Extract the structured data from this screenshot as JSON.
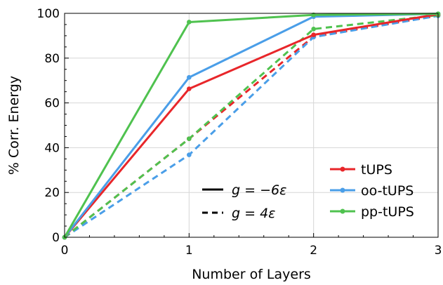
{
  "chart_data": {
    "type": "line",
    "xlabel": "Number of Layers",
    "ylabel": "% Corr. Energy",
    "x": [
      0,
      1,
      2,
      3
    ],
    "xlim": [
      0,
      3
    ],
    "ylim": [
      0,
      100
    ],
    "xticks": [
      "0",
      "1",
      "2",
      "3"
    ],
    "yticks": [
      "0",
      "20",
      "40",
      "60",
      "80",
      "100"
    ],
    "grid": true,
    "series": [
      {
        "name": "tUPS",
        "color": "#e8262a",
        "linestyle": "solid",
        "group": "g = −6ε",
        "values": [
          0,
          66.3,
          90.4,
          99.6
        ]
      },
      {
        "name": "oo-tUPS",
        "color": "#4a9ee8",
        "linestyle": "solid",
        "group": "g = −6ε",
        "values": [
          0,
          71.4,
          98.5,
          99.8
        ]
      },
      {
        "name": "pp-tUPS",
        "color": "#4fc24f",
        "linestyle": "solid",
        "group": "g = −6ε",
        "values": [
          0,
          96.1,
          99.3,
          99.8
        ]
      },
      {
        "name": "tUPS",
        "color": "#e8262a",
        "linestyle": "dashed",
        "group": "g = 4ε",
        "values": [
          0,
          44.0,
          89.6,
          99.0
        ]
      },
      {
        "name": "oo-tUPS",
        "color": "#4a9ee8",
        "linestyle": "dashed",
        "group": "g = 4ε",
        "values": [
          0,
          36.8,
          89.4,
          98.9
        ]
      },
      {
        "name": "pp-tUPS",
        "color": "#4fc24f",
        "linestyle": "dashed",
        "group": "g = 4ε",
        "values": [
          0,
          44.0,
          93.0,
          99.2
        ]
      }
    ],
    "legend": {
      "placement": "bottom-right",
      "entries": [
        {
          "label": "tUPS",
          "color": "#e8262a"
        },
        {
          "label": "oo-tUPS",
          "color": "#4a9ee8"
        },
        {
          "label": "pp-tUPS",
          "color": "#4fc24f"
        }
      ]
    },
    "style_legend": {
      "solid": {
        "var": "g",
        "eq": " = ",
        "value": "−6ε"
      },
      "dashed": {
        "var": "g",
        "eq": " = ",
        "value": "4ε"
      }
    }
  }
}
